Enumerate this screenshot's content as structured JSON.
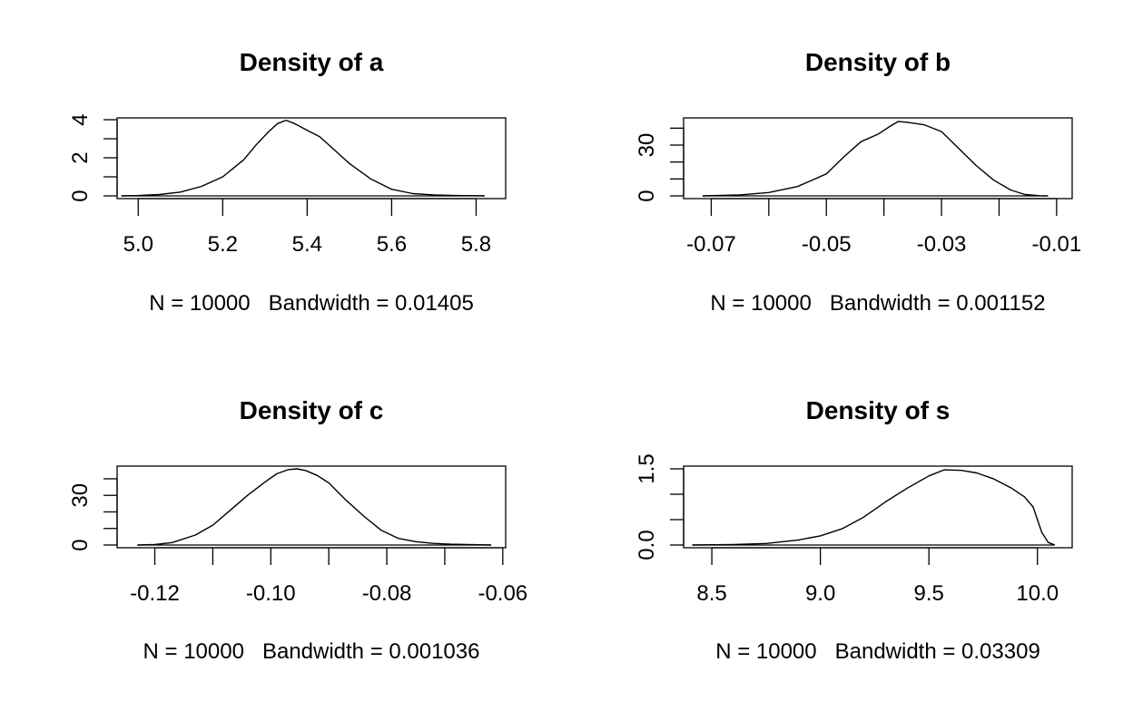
{
  "chart_data": [
    {
      "type": "line",
      "title": "Density of a",
      "xlabel": "N = 10000   Bandwidth = 0.01405",
      "ylabel": "",
      "xlim": [
        4.95,
        5.87
      ],
      "ylim": [
        0,
        4
      ],
      "x_ticks": [
        5.0,
        5.2,
        5.4,
        5.6,
        5.8
      ],
      "x_tick_labels": [
        "5.0",
        "5.2",
        "5.4",
        "5.6",
        "5.8"
      ],
      "y_ticks": [
        0,
        2,
        4
      ],
      "y_tick_labels": [
        "0",
        "2",
        "4"
      ],
      "y_minor_ticks": [
        1,
        3
      ],
      "series": [
        {
          "x": [
            4.96,
            5.0,
            5.05,
            5.1,
            5.15,
            5.2,
            5.25,
            5.28,
            5.31,
            5.33,
            5.35,
            5.37,
            5.4,
            5.43,
            5.46,
            5.5,
            5.55,
            5.6,
            5.65,
            5.7,
            5.75,
            5.8,
            5.82
          ],
          "y": [
            0.0,
            0.02,
            0.07,
            0.2,
            0.5,
            1.0,
            1.9,
            2.7,
            3.4,
            3.8,
            3.97,
            3.8,
            3.45,
            3.1,
            2.5,
            1.7,
            0.9,
            0.35,
            0.12,
            0.05,
            0.02,
            0.01,
            0.0
          ]
        }
      ]
    },
    {
      "type": "line",
      "title": "Density of b",
      "xlabel": "N = 10000   Bandwidth = 0.001152",
      "ylabel": "",
      "xlim": [
        -0.0748,
        -0.0073
      ],
      "ylim": [
        0,
        45
      ],
      "x_ticks": [
        -0.07,
        -0.06,
        -0.05,
        -0.04,
        -0.03,
        -0.02,
        -0.01
      ],
      "x_tick_labels": [
        "-0.07",
        "",
        "-0.05",
        "",
        "-0.03",
        "",
        "-0.01"
      ],
      "y_ticks": [
        0,
        30
      ],
      "y_tick_labels": [
        "0",
        "30"
      ],
      "y_minor_ticks": [
        10,
        20,
        40
      ],
      "series": [
        {
          "x": [
            -0.0715,
            -0.065,
            -0.06,
            -0.055,
            -0.05,
            -0.047,
            -0.044,
            -0.041,
            -0.039,
            -0.0375,
            -0.036,
            -0.033,
            -0.03,
            -0.027,
            -0.024,
            -0.021,
            -0.018,
            -0.0155,
            -0.013,
            -0.0115
          ],
          "y": [
            0.0,
            0.6,
            2.0,
            5.5,
            13.0,
            23.0,
            32.0,
            36.5,
            41.0,
            44.0,
            43.5,
            42.0,
            38.0,
            28.0,
            18.0,
            9.5,
            3.5,
            0.8,
            0.1,
            0.0
          ]
        }
      ]
    },
    {
      "type": "line",
      "title": "Density of c",
      "xlabel": "N = 10000   Bandwidth = 0.001036",
      "ylabel": "",
      "xlim": [
        -0.1265,
        -0.0595
      ],
      "ylim": [
        0,
        46
      ],
      "x_ticks": [
        -0.12,
        -0.11,
        -0.1,
        -0.09,
        -0.08,
        -0.07,
        -0.06
      ],
      "x_tick_labels": [
        "-0.12",
        "",
        "-0.10",
        "",
        "-0.08",
        "",
        "-0.06"
      ],
      "y_ticks": [
        0,
        30
      ],
      "y_tick_labels": [
        "0",
        "30"
      ],
      "y_minor_ticks": [
        10,
        20,
        40
      ],
      "series": [
        {
          "x": [
            -0.123,
            -0.12,
            -0.117,
            -0.113,
            -0.11,
            -0.107,
            -0.104,
            -0.101,
            -0.099,
            -0.097,
            -0.0955,
            -0.094,
            -0.092,
            -0.09,
            -0.087,
            -0.084,
            -0.081,
            -0.078,
            -0.075,
            -0.072,
            -0.069,
            -0.065,
            -0.062
          ],
          "y": [
            0.0,
            0.3,
            1.5,
            6.0,
            12.0,
            21.0,
            30.0,
            38.0,
            43.0,
            45.5,
            46.0,
            45.0,
            42.0,
            37.5,
            27.0,
            17.5,
            9.0,
            4.0,
            2.0,
            1.0,
            0.5,
            0.2,
            0.0
          ]
        }
      ]
    },
    {
      "type": "line",
      "title": "Density of s",
      "xlabel": "N = 10000   Bandwidth = 0.03309",
      "ylabel": "",
      "xlim": [
        8.37,
        10.16
      ],
      "ylim": [
        0,
        1.5
      ],
      "x_ticks": [
        8.5,
        9.0,
        9.5,
        10.0
      ],
      "x_tick_labels": [
        "8.5",
        "9.0",
        "9.5",
        "10.0"
      ],
      "y_ticks": [
        0.0,
        1.5
      ],
      "y_tick_labels": [
        "0.0",
        "1.5"
      ],
      "y_minor_ticks": [
        0.5,
        1.0
      ],
      "series": [
        {
          "x": [
            8.41,
            8.6,
            8.75,
            8.9,
            9.0,
            9.1,
            9.2,
            9.3,
            9.4,
            9.5,
            9.57,
            9.65,
            9.72,
            9.8,
            9.88,
            9.94,
            9.98,
            10.0,
            10.02,
            10.05,
            10.08
          ],
          "y": [
            0.0,
            0.01,
            0.03,
            0.1,
            0.18,
            0.32,
            0.55,
            0.85,
            1.12,
            1.36,
            1.48,
            1.47,
            1.42,
            1.3,
            1.12,
            0.95,
            0.75,
            0.5,
            0.25,
            0.05,
            0.0
          ]
        }
      ]
    }
  ]
}
